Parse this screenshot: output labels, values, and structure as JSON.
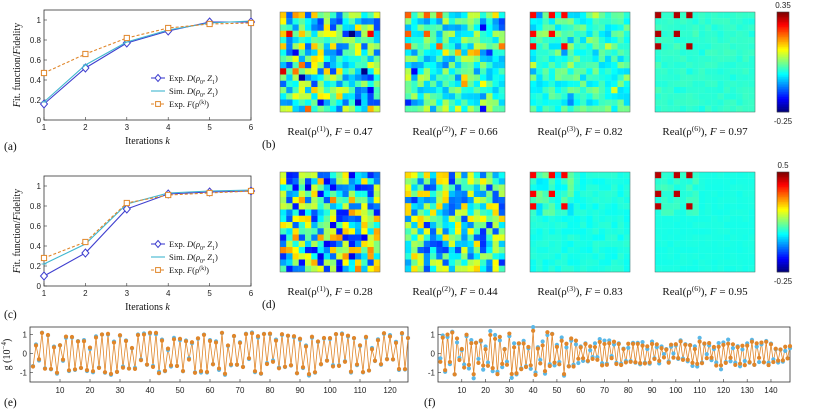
{
  "colors": {
    "exp_D": "#3f3fcf",
    "sim_D": "#3fb6cf",
    "exp_F": "#e0862a",
    "g_exp": "#e0862a",
    "g_sim": "#5ab8e8"
  },
  "chart_data": [
    {
      "id": "a",
      "type": "line",
      "panel_label": "(a)",
      "xlabel": "Iterations k",
      "ylabel": "Fit. function/Fidelity",
      "x": [
        1,
        2,
        3,
        4,
        5,
        6
      ],
      "xlim": [
        1,
        6
      ],
      "ylim": [
        0,
        1.1
      ],
      "yticks": [
        "0",
        "0.2",
        "0.4",
        "0.6",
        "0.8",
        "1"
      ],
      "legend_position": "lower-right",
      "series": [
        {
          "name": "Exp. D(ρ0, Z1)",
          "marker": "diamond",
          "values": [
            0.16,
            0.52,
            0.77,
            0.89,
            0.98,
            0.98
          ]
        },
        {
          "name": "Sim. D(ρ0, Z1)",
          "marker": "plus",
          "values": [
            0.18,
            0.55,
            0.78,
            0.9,
            0.97,
            0.99
          ]
        },
        {
          "name": "Exp. F(ρ(k))",
          "marker": "square",
          "values": [
            0.47,
            0.66,
            0.82,
            0.92,
            0.96,
            0.97
          ]
        }
      ]
    },
    {
      "id": "b",
      "type": "heatmap",
      "panel_label": "(b)",
      "colorbar": {
        "max": "0.35",
        "min": "-0.25"
      },
      "matrices": [
        {
          "caption": "Real(ρ(1)), F = 0.47",
          "fidelity": 0.47
        },
        {
          "caption": "Real(ρ(2)), F = 0.66",
          "fidelity": 0.66
        },
        {
          "caption": "Real(ρ(3)), F = 0.82",
          "fidelity": 0.82
        },
        {
          "caption": "Real(ρ(6)), F = 0.97",
          "fidelity": 0.97
        }
      ]
    },
    {
      "id": "c",
      "type": "line",
      "panel_label": "(c)",
      "xlabel": "Iterations k",
      "ylabel": "Fit. function/Fidelity",
      "x": [
        1,
        2,
        3,
        4,
        5,
        6
      ],
      "xlim": [
        1,
        6
      ],
      "ylim": [
        0,
        1.1
      ],
      "yticks": [
        "0",
        "0.2",
        "0.4",
        "0.6",
        "0.8",
        "1"
      ],
      "legend_position": "lower-right",
      "series": [
        {
          "name": "Exp. D(ρ0, Z1)",
          "marker": "diamond",
          "values": [
            0.1,
            0.33,
            0.77,
            0.92,
            0.94,
            0.95
          ]
        },
        {
          "name": "Sim. D(ρ0, Z1)",
          "marker": "plus",
          "values": [
            0.22,
            0.42,
            0.82,
            0.93,
            0.95,
            0.96
          ]
        },
        {
          "name": "Exp. F(ρ(k))",
          "marker": "square",
          "values": [
            0.28,
            0.44,
            0.83,
            0.91,
            0.93,
            0.95
          ]
        }
      ]
    },
    {
      "id": "d",
      "type": "heatmap",
      "panel_label": "(d)",
      "colorbar": {
        "max": "0.5",
        "min": "-0.25"
      },
      "matrices": [
        {
          "caption": "Real(ρ(1)), F = 0.28",
          "fidelity": 0.28
        },
        {
          "caption": "Real(ρ(2)), F = 0.44",
          "fidelity": 0.44
        },
        {
          "caption": "Real(ρ(3)), F = 0.83",
          "fidelity": 0.83
        },
        {
          "caption": "Real(ρ(6)), F = 0.95",
          "fidelity": 0.95
        }
      ]
    },
    {
      "id": "e",
      "type": "line",
      "panel_label": "(e)",
      "ylabel": "g (10^-4)",
      "xlim": [
        0,
        126
      ],
      "ylim": [
        -1.5,
        1.4
      ],
      "xticks": [
        "10",
        "20",
        "30",
        "40",
        "50",
        "60",
        "70",
        "80",
        "90",
        "100",
        "110",
        "120"
      ],
      "yticks": [
        "-1",
        "0",
        "1"
      ],
      "count": 126
    },
    {
      "id": "f",
      "type": "line",
      "panel_label": "(f)",
      "xlim": [
        0,
        148
      ],
      "ylim": [
        -1.5,
        1.4
      ],
      "xticks": [
        "10",
        "20",
        "30",
        "40",
        "50",
        "60",
        "70",
        "80",
        "90",
        "100",
        "110",
        "120",
        "130",
        "140"
      ],
      "yticks": [
        "-1",
        "0",
        "1"
      ],
      "count": 148
    }
  ]
}
